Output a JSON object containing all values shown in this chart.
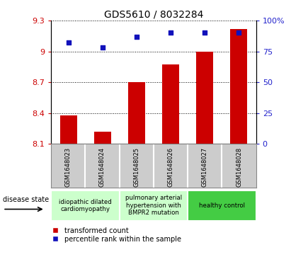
{
  "title": "GDS5610 / 8032284",
  "samples": [
    "GSM1648023",
    "GSM1648024",
    "GSM1648025",
    "GSM1648026",
    "GSM1648027",
    "GSM1648028"
  ],
  "transformed_count": [
    8.38,
    8.22,
    8.7,
    8.87,
    9.0,
    9.22
  ],
  "percentile_rank": [
    82,
    78,
    87,
    90,
    90,
    90
  ],
  "ylim_left": [
    8.1,
    9.3
  ],
  "ylim_right": [
    0,
    100
  ],
  "yticks_left": [
    8.1,
    8.4,
    8.7,
    9.0,
    9.3
  ],
  "yticks_right": [
    0,
    25,
    50,
    75,
    100
  ],
  "ytick_labels_left": [
    "8.1",
    "8.4",
    "8.7",
    "9",
    "9.3"
  ],
  "ytick_labels_right": [
    "0",
    "25",
    "50",
    "75",
    "100%"
  ],
  "bar_color": "#cc0000",
  "dot_color": "#1111bb",
  "disease_groups": [
    {
      "label": "idiopathic dilated\ncardiomyopathy",
      "indices": [
        0,
        1
      ],
      "color": "#ccffcc"
    },
    {
      "label": "pulmonary arterial\nhypertension with\nBMPR2 mutation",
      "indices": [
        2,
        3
      ],
      "color": "#ccffcc"
    },
    {
      "label": "healthy control",
      "indices": [
        4,
        5
      ],
      "color": "#44cc44"
    }
  ],
  "legend_bar_label": "transformed count",
  "legend_dot_label": "percentile rank within the sample",
  "disease_state_label": "disease state",
  "background_color": "#ffffff",
  "plot_bg_color": "#ffffff",
  "grid_color": "#000000",
  "axis_label_color_left": "#cc0000",
  "axis_label_color_right": "#2222cc",
  "sample_box_color": "#cccccc",
  "sample_sep_color": "#999999"
}
